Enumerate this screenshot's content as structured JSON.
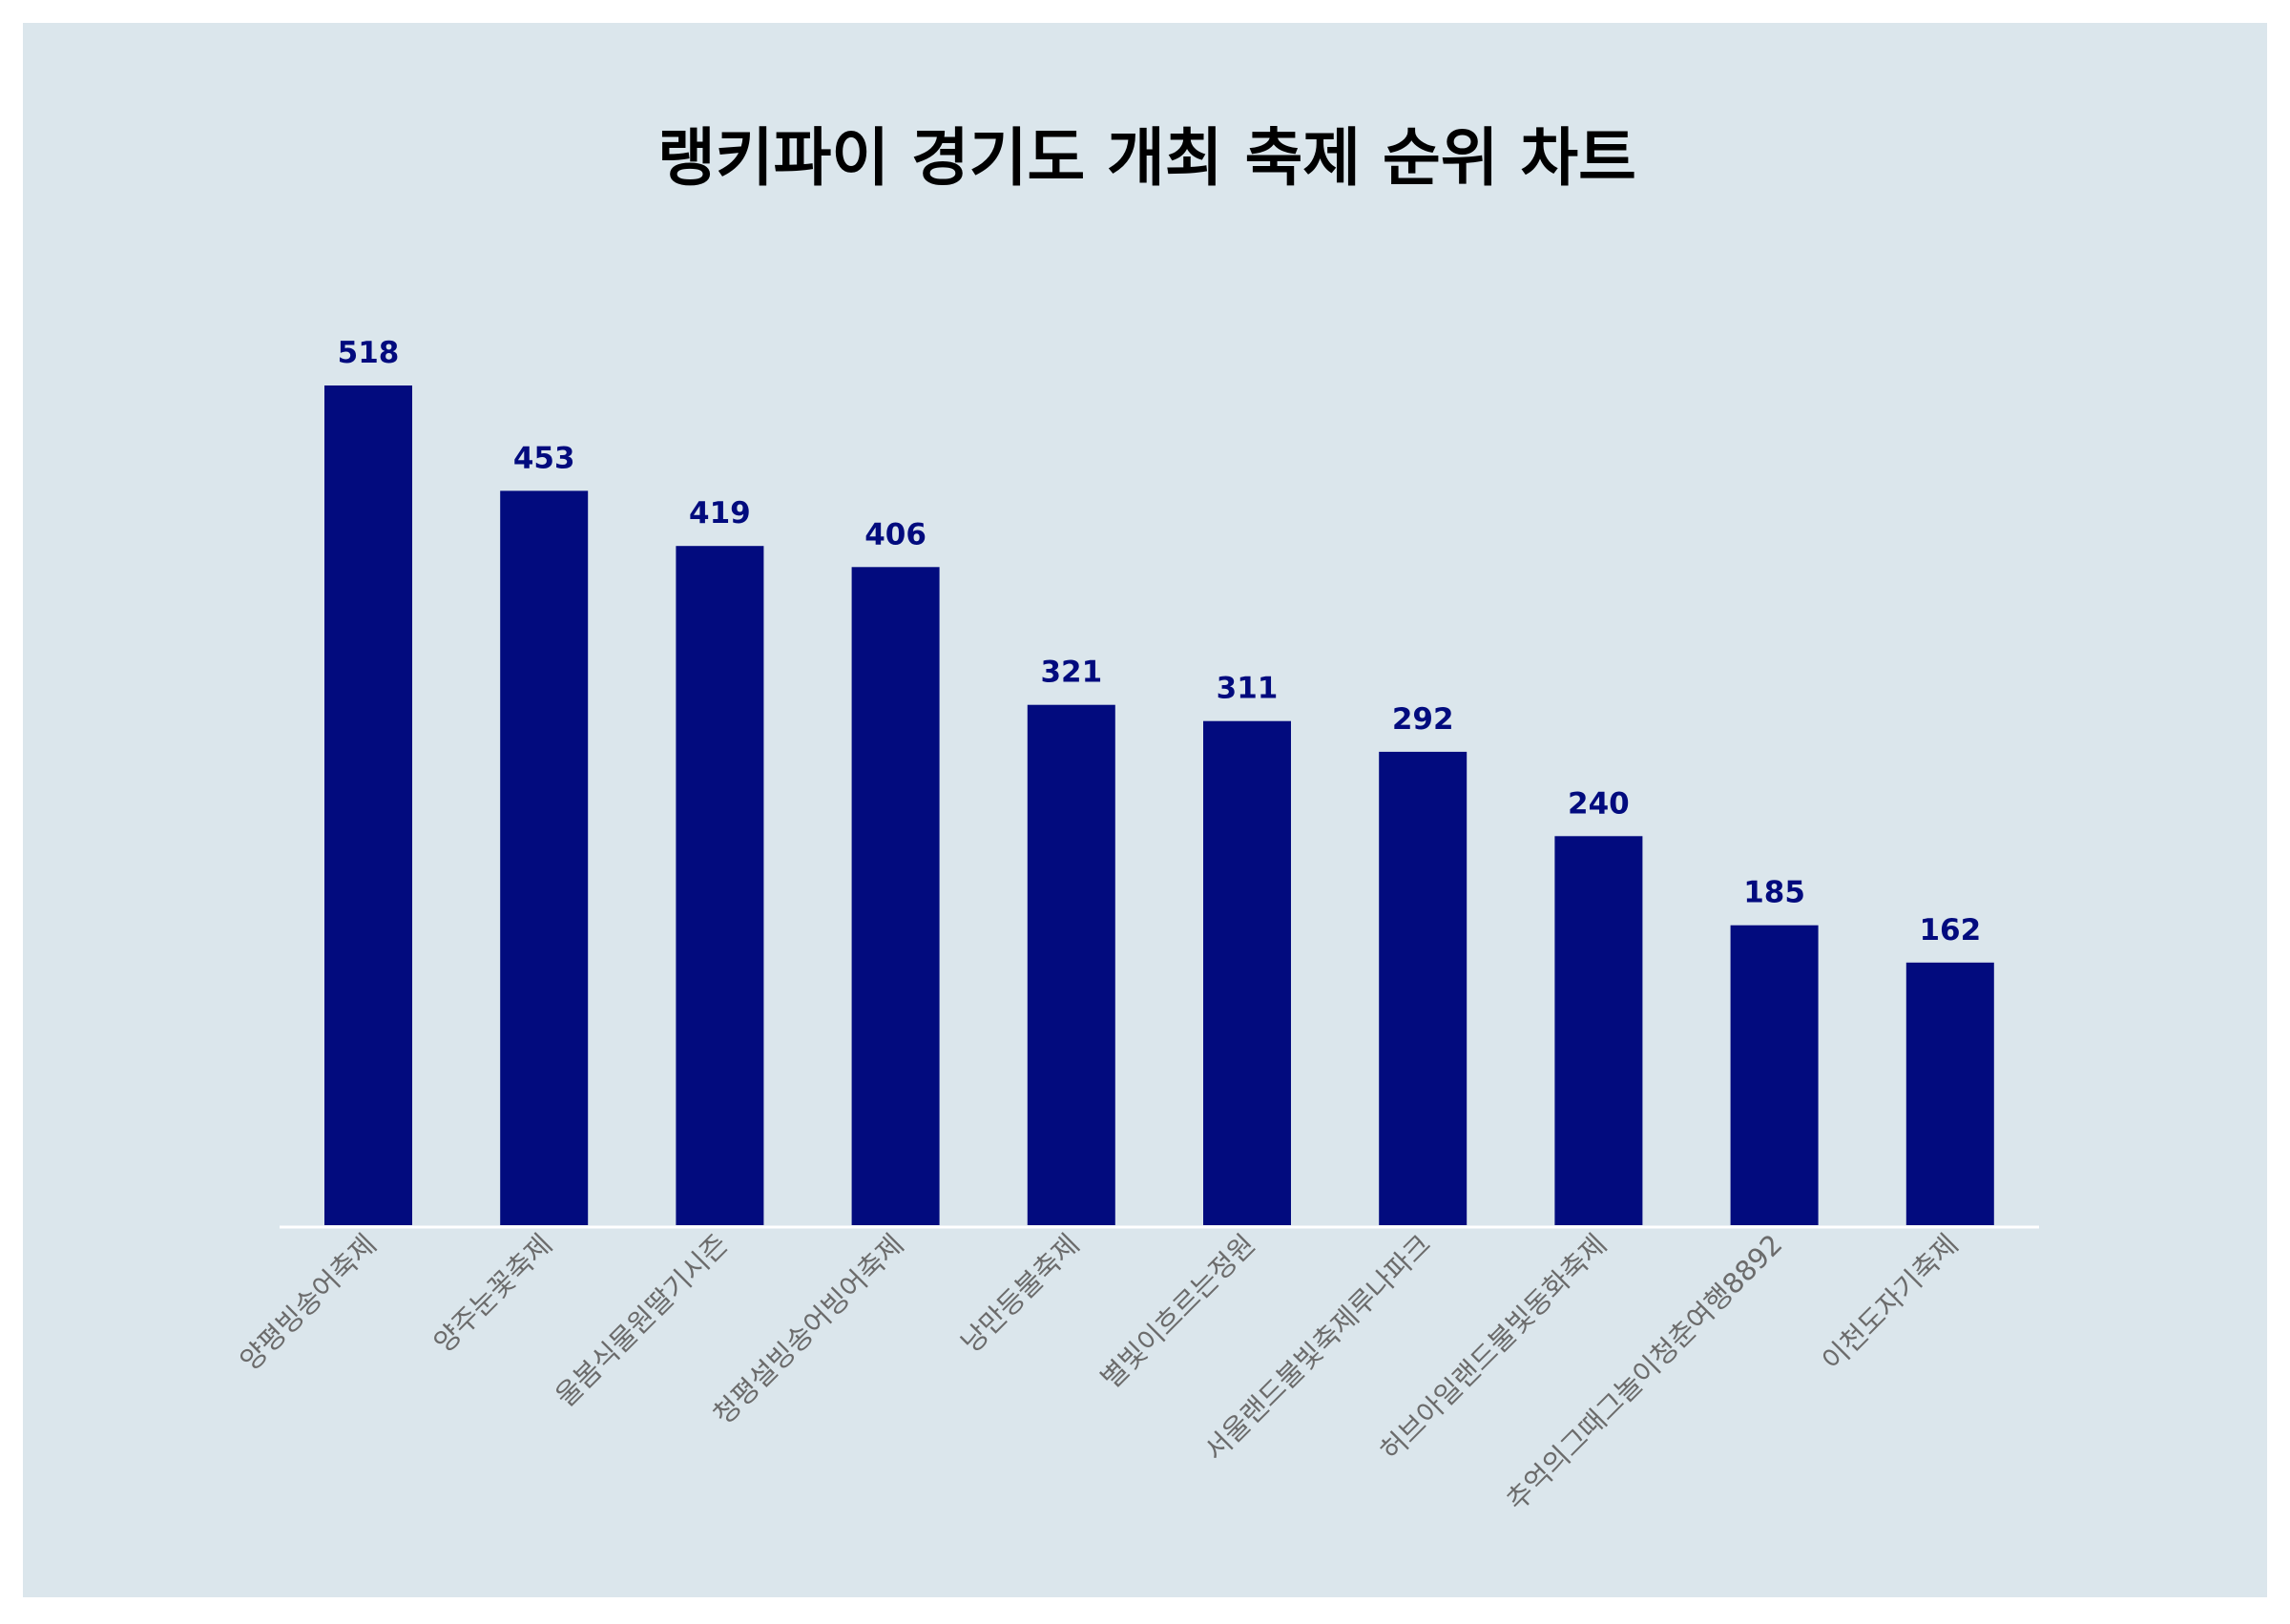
{
  "colors": {
    "page_background": "#ffffff",
    "panel_background": "#dbe6ec",
    "bar": "#020b7e",
    "value_label": "#020b7e",
    "tick_label": "#6b6b6b",
    "title": "#000000",
    "baseline": "#ffffff"
  },
  "chart_data": {
    "type": "bar",
    "title": "랭키파이 경기도 개최 축제 순위 차트",
    "xlabel": "",
    "ylabel": "",
    "ylim": [
      0,
      580
    ],
    "grid": false,
    "legend": "none",
    "categories": [
      "양평빙송어축제",
      "양주눈꽃축제",
      "울봄식물원딸기시즌",
      "청평설빙송어빙어축제",
      "낭만등불축제",
      "별빛이흐르는정원",
      "서울랜드불빛축제루나파크",
      "허브아일랜드불빛동화축제",
      "추억의그때그놀이청춘여행8892",
      "이천도자기축제"
    ],
    "values": [
      518,
      453,
      419,
      406,
      321,
      311,
      292,
      240,
      185,
      162
    ]
  }
}
